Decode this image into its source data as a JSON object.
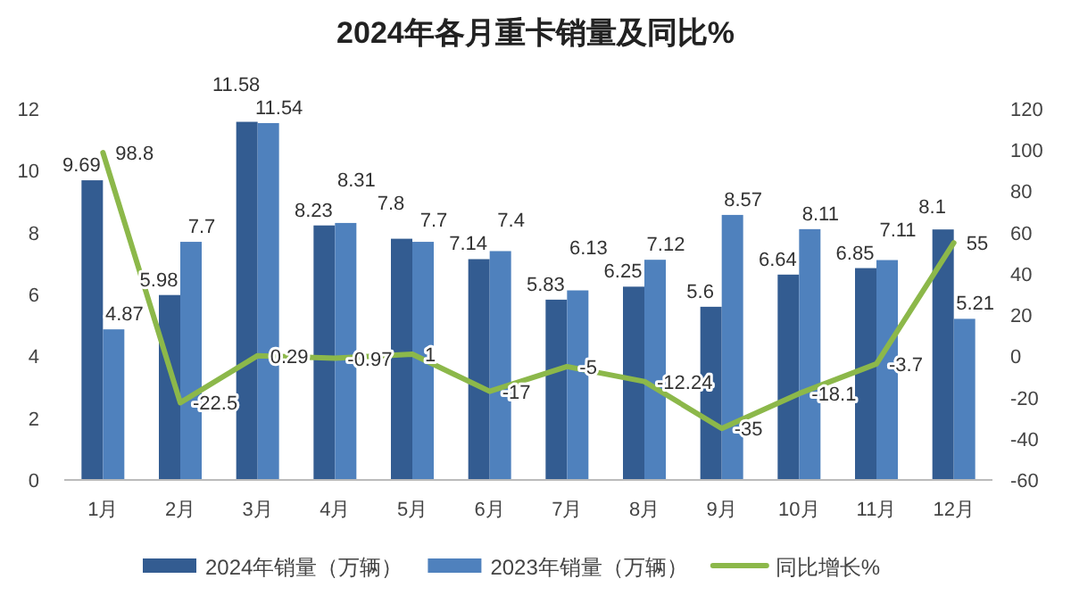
{
  "chart_data": {
    "type": "bar",
    "title": "2024年各月重卡销量及同比%",
    "categories": [
      "1月",
      "2月",
      "3月",
      "4月",
      "5月",
      "6月",
      "7月",
      "8月",
      "9月",
      "10月",
      "11月",
      "12月"
    ],
    "series": [
      {
        "name": "2024年销量（万辆）",
        "color": "#335c91",
        "values": [
          9.69,
          5.98,
          11.58,
          8.23,
          7.8,
          7.14,
          5.83,
          6.25,
          5.6,
          6.64,
          6.85,
          8.1
        ]
      },
      {
        "name": "2023年销量（万辆）",
        "color": "#4f81bd",
        "values": [
          4.87,
          7.7,
          11.54,
          8.31,
          7.7,
          7.4,
          6.13,
          7.12,
          8.57,
          8.11,
          7.11,
          5.21
        ]
      },
      {
        "name": "同比增长%",
        "type": "line",
        "axis": "y2",
        "color": "#8cb84a",
        "values": [
          98.8,
          -22.5,
          0.29,
          -0.97,
          1,
          -17,
          -5,
          -12.24,
          -35,
          -18.1,
          -3.7,
          55
        ]
      }
    ],
    "ylim": [
      0,
      12
    ],
    "yticks": [
      0,
      2,
      4,
      6,
      8,
      10,
      12
    ],
    "y2lim": [
      -60,
      120
    ],
    "y2ticks": [
      -60,
      -40,
      -20,
      0,
      20,
      40,
      60,
      80,
      100,
      120
    ],
    "data_labels": true,
    "legend": "bottom",
    "grid": false,
    "marker": "none"
  }
}
